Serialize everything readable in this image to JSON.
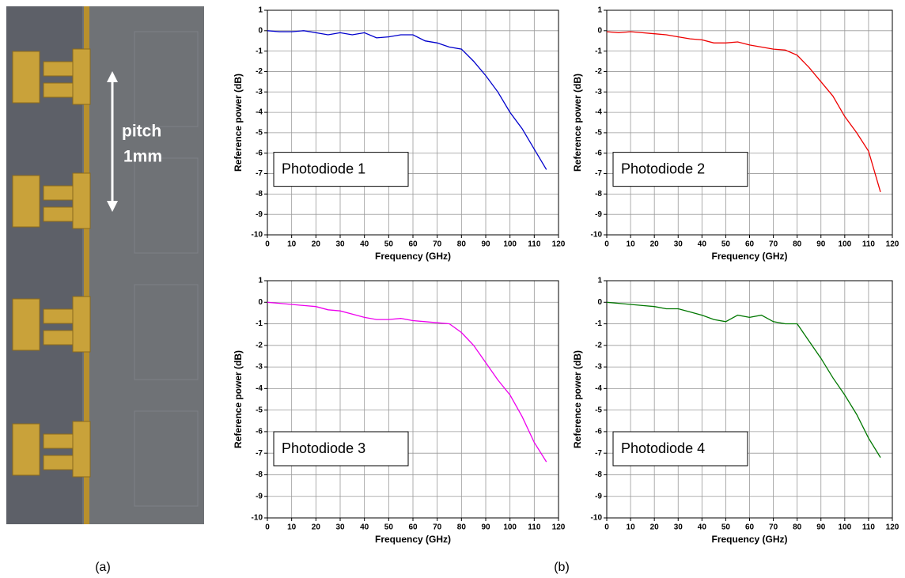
{
  "panel_labels": {
    "a": "(a)",
    "b": "(b)"
  },
  "photo": {
    "annotation_line1": "pitch",
    "annotation_line2": "1mm"
  },
  "chart_data": [
    {
      "type": "line",
      "annotation": "Photodiode 1",
      "xlabel": "Frequency (GHz)",
      "ylabel": "Reference power (dB)",
      "x": [
        0,
        5,
        10,
        15,
        20,
        25,
        30,
        35,
        40,
        45,
        50,
        55,
        60,
        65,
        70,
        75,
        80,
        85,
        90,
        95,
        100,
        105,
        110,
        115
      ],
      "values": [
        0,
        -0.05,
        -0.05,
        0,
        -0.1,
        -0.2,
        -0.1,
        -0.2,
        -0.1,
        -0.35,
        -0.3,
        -0.2,
        -0.2,
        -0.5,
        -0.6,
        -0.8,
        -0.9,
        -1.5,
        -2.2,
        -3.0,
        -4.0,
        -4.8,
        -5.8,
        -6.8
      ],
      "color": "#0000cc",
      "xlim": [
        0,
        120
      ],
      "ylim": [
        -10,
        1
      ],
      "xticks": [
        0,
        10,
        20,
        30,
        40,
        50,
        60,
        70,
        80,
        90,
        100,
        110,
        120
      ],
      "yticks": [
        1,
        0,
        -1,
        -2,
        -3,
        -4,
        -5,
        -6,
        -7,
        -8,
        -9,
        -10
      ],
      "grid": true
    },
    {
      "type": "line",
      "annotation": "Photodiode 2",
      "xlabel": "Frequency (GHz)",
      "ylabel": "Reference power (dB)",
      "x": [
        0,
        5,
        10,
        15,
        20,
        25,
        30,
        35,
        40,
        45,
        50,
        55,
        60,
        65,
        70,
        75,
        80,
        85,
        90,
        95,
        100,
        105,
        110,
        115
      ],
      "values": [
        -0.05,
        -0.1,
        -0.05,
        -0.1,
        -0.15,
        -0.2,
        -0.3,
        -0.4,
        -0.45,
        -0.6,
        -0.6,
        -0.55,
        -0.7,
        -0.8,
        -0.9,
        -0.95,
        -1.2,
        -1.8,
        -2.5,
        -3.2,
        -4.2,
        -5.0,
        -5.9,
        -7.9
      ],
      "color": "#ee0000",
      "xlim": [
        0,
        120
      ],
      "ylim": [
        -10,
        1
      ],
      "xticks": [
        0,
        10,
        20,
        30,
        40,
        50,
        60,
        70,
        80,
        90,
        100,
        110,
        120
      ],
      "yticks": [
        1,
        0,
        -1,
        -2,
        -3,
        -4,
        -5,
        -6,
        -7,
        -8,
        -9,
        -10
      ],
      "grid": true
    },
    {
      "type": "line",
      "annotation": "Photodiode 3",
      "xlabel": "Frequency (GHz)",
      "ylabel": "Reference power (dB)",
      "x": [
        0,
        5,
        10,
        15,
        20,
        25,
        30,
        35,
        40,
        45,
        50,
        55,
        60,
        65,
        70,
        75,
        80,
        85,
        90,
        95,
        100,
        105,
        110,
        115
      ],
      "values": [
        0,
        -0.05,
        -0.1,
        -0.15,
        -0.2,
        -0.35,
        -0.4,
        -0.55,
        -0.7,
        -0.8,
        -0.8,
        -0.75,
        -0.85,
        -0.9,
        -0.95,
        -1.0,
        -1.4,
        -2.0,
        -2.8,
        -3.6,
        -4.3,
        -5.3,
        -6.5,
        -7.4
      ],
      "color": "#ee00ee",
      "xlim": [
        0,
        120
      ],
      "ylim": [
        -10,
        1
      ],
      "xticks": [
        0,
        10,
        20,
        30,
        40,
        50,
        60,
        70,
        80,
        90,
        100,
        110,
        120
      ],
      "yticks": [
        1,
        0,
        -1,
        -2,
        -3,
        -4,
        -5,
        -6,
        -7,
        -8,
        -9,
        -10
      ],
      "grid": true
    },
    {
      "type": "line",
      "annotation": "Photodiode 4",
      "xlabel": "Frequency (GHz)",
      "ylabel": "Reference power (dB)",
      "x": [
        0,
        5,
        10,
        15,
        20,
        25,
        30,
        35,
        40,
        45,
        50,
        55,
        60,
        65,
        70,
        75,
        80,
        85,
        90,
        95,
        100,
        105,
        110,
        115
      ],
      "values": [
        0,
        -0.05,
        -0.1,
        -0.15,
        -0.2,
        -0.3,
        -0.3,
        -0.45,
        -0.6,
        -0.8,
        -0.9,
        -0.6,
        -0.7,
        -0.6,
        -0.9,
        -1.0,
        -1.0,
        -1.8,
        -2.6,
        -3.5,
        -4.3,
        -5.2,
        -6.3,
        -7.2
      ],
      "color": "#007700",
      "xlim": [
        0,
        120
      ],
      "ylim": [
        -10,
        1
      ],
      "xticks": [
        0,
        10,
        20,
        30,
        40,
        50,
        60,
        70,
        80,
        90,
        100,
        110,
        120
      ],
      "yticks": [
        1,
        0,
        -1,
        -2,
        -3,
        -4,
        -5,
        -6,
        -7,
        -8,
        -9,
        -10
      ],
      "grid": true
    }
  ]
}
